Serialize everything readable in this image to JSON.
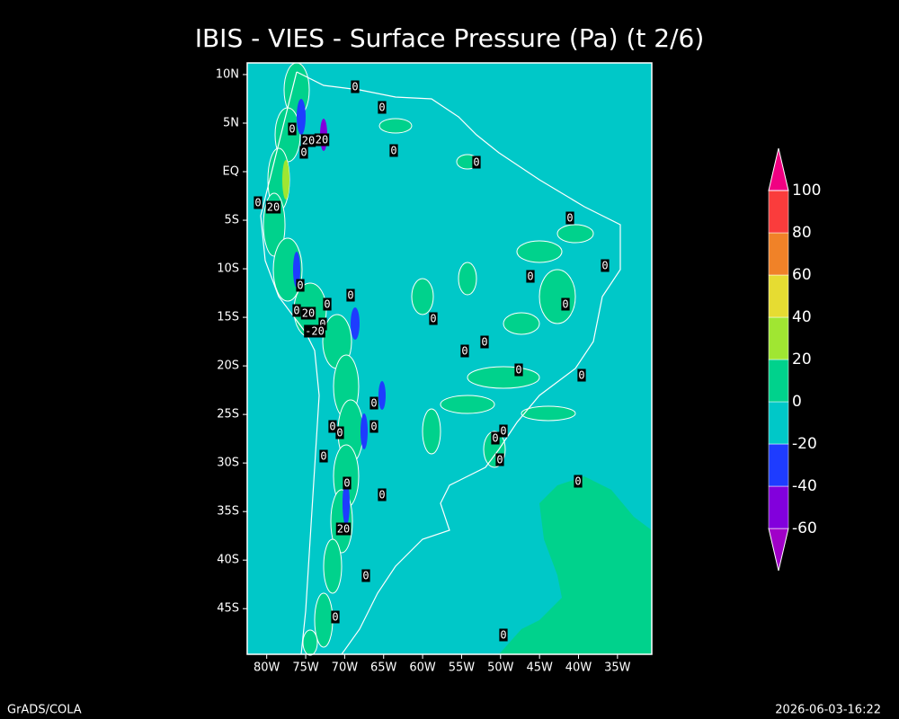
{
  "title": "IBIS - VIES - Surface Pressure (Pa) (t 2/6)",
  "map": {
    "lonlim": [
      -82.5,
      -30.6
    ],
    "latlim": [
      -49.7,
      11.2
    ],
    "lon_ticks": [
      {
        "value": -80,
        "label": "80W"
      },
      {
        "value": -75,
        "label": "75W"
      },
      {
        "value": -70,
        "label": "70W"
      },
      {
        "value": -65,
        "label": "65W"
      },
      {
        "value": -60,
        "label": "60W"
      },
      {
        "value": -55,
        "label": "55W"
      },
      {
        "value": -50,
        "label": "50W"
      },
      {
        "value": -45,
        "label": "45W"
      },
      {
        "value": -40,
        "label": "40W"
      },
      {
        "value": -35,
        "label": "35W"
      }
    ],
    "lat_ticks": [
      {
        "value": 10,
        "label": "10N"
      },
      {
        "value": 5,
        "label": "5N"
      },
      {
        "value": 0,
        "label": "EQ"
      },
      {
        "value": -5,
        "label": "5S"
      },
      {
        "value": -10,
        "label": "10S"
      },
      {
        "value": -15,
        "label": "15S"
      },
      {
        "value": -20,
        "label": "20S"
      },
      {
        "value": -25,
        "label": "25S"
      },
      {
        "value": -30,
        "label": "30S"
      },
      {
        "value": -35,
        "label": "35S"
      },
      {
        "value": -40,
        "label": "40S"
      },
      {
        "value": -45,
        "label": "45S"
      }
    ],
    "contour_labels": [
      "0",
      "0",
      "0",
      "20",
      "20",
      "0",
      "0",
      "0",
      "0",
      "20",
      "0",
      "0",
      "0",
      "0",
      "0",
      "0",
      "0",
      "0",
      "20",
      "0",
      "0",
      "-20",
      "0",
      "0",
      "0",
      "0",
      "0",
      "0",
      "0",
      "0",
      "0",
      "0",
      "0",
      "0",
      "0",
      "0",
      "0",
      "20",
      "0",
      "0",
      "0"
    ]
  },
  "colorbar": {
    "levels": [
      -60,
      -40,
      -20,
      0,
      20,
      40,
      60,
      80,
      100
    ],
    "colors": [
      "#a000c8",
      "#8200dc",
      "#1e3cff",
      "#00c8c8",
      "#00d28c",
      "#a0e632",
      "#e6dc32",
      "#f08228",
      "#fa3c3c",
      "#f00082"
    ]
  },
  "footer": {
    "left": "GrADS/COLA",
    "right": "2026-06-03-16:22"
  }
}
